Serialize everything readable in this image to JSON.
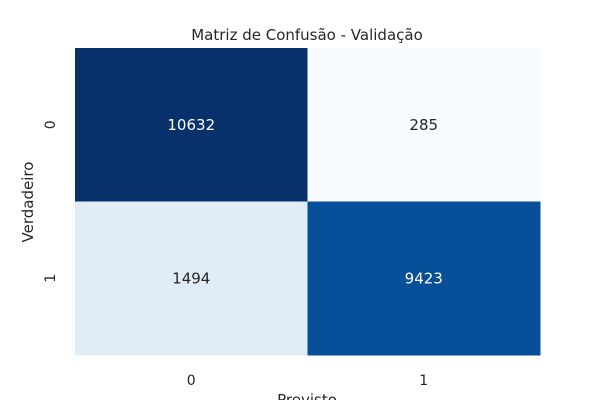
{
  "chart_data": {
    "type": "heatmap",
    "title": "Matriz de Confusão - Validação",
    "xlabel": "Previsto",
    "ylabel": "Verdadeiro",
    "x_categories": [
      "0",
      "1"
    ],
    "y_categories": [
      "0",
      "1"
    ],
    "values": [
      [
        10632,
        285
      ],
      [
        1494,
        9423
      ]
    ],
    "colormap": "Blues",
    "colors": {
      "low": "#f7fbff",
      "high": "#08306b",
      "text_dark": "#262626",
      "text_light": "#ffffff"
    },
    "grid": false,
    "colorbar": false
  }
}
